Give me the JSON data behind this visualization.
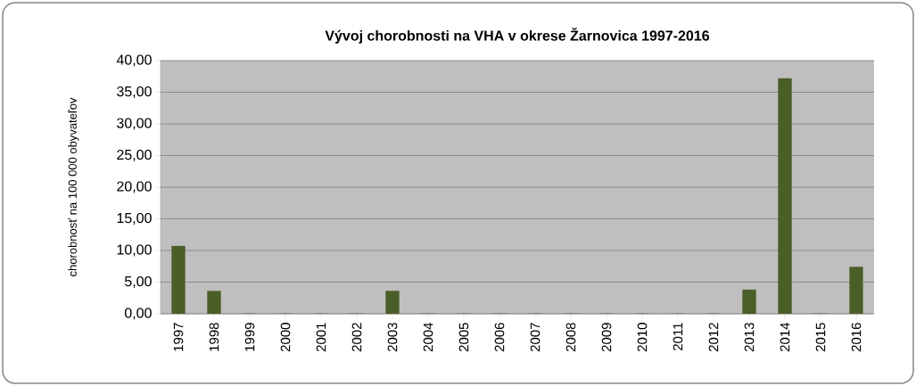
{
  "chart_data": {
    "type": "bar",
    "title": "Vývoj chorobnosti na  VHA v okrese Žarnovica 1997-2016",
    "ylabel": "chorobnosť na 100 000 obyvateľov",
    "categories": [
      "1997",
      "1998",
      "1999",
      "2000",
      "2001",
      "2002",
      "2003",
      "2004",
      "2005",
      "2006",
      "2007",
      "2008",
      "2009",
      "2010",
      "2011",
      "2012",
      "2013",
      "2014",
      "2015",
      "2016"
    ],
    "values": [
      10.7,
      3.6,
      0,
      0,
      0,
      0,
      3.6,
      0,
      0,
      0,
      0,
      0,
      0,
      0,
      0,
      0,
      3.8,
      37.2,
      0,
      7.4
    ],
    "color": "#4a5e27",
    "ylim": [
      0,
      40
    ],
    "yticks": [
      {
        "value": 0,
        "label": "0,00"
      },
      {
        "value": 5,
        "label": "5,00"
      },
      {
        "value": 10,
        "label": "10,00"
      },
      {
        "value": 15,
        "label": "15,00"
      },
      {
        "value": 20,
        "label": "20,00"
      },
      {
        "value": 25,
        "label": "25,00"
      },
      {
        "value": 30,
        "label": "30,00"
      },
      {
        "value": 35,
        "label": "35,00"
      },
      {
        "value": 40,
        "label": "40,00"
      }
    ],
    "grid": "y"
  }
}
